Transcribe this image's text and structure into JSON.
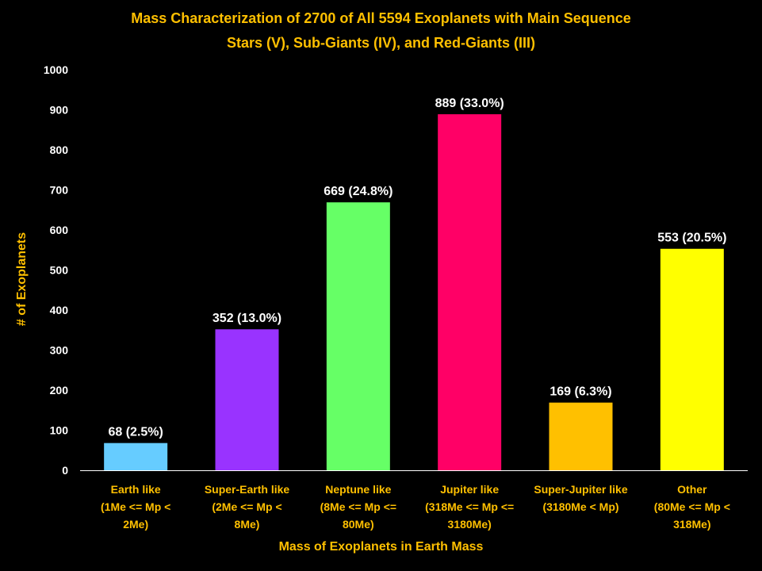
{
  "chart_data": {
    "type": "bar",
    "title": [
      "Mass Characterization of 2700 of All 5594 Exoplanets with Main Sequence",
      "Stars (V), Sub-Giants (IV), and Red-Giants (III)"
    ],
    "xlabel": "Mass of Exoplanets in Earth Mass",
    "ylabel": "# of Exoplanets",
    "ylim": [
      0,
      1000
    ],
    "yticks": [
      "0",
      "100",
      "200",
      "300",
      "400",
      "500",
      "600",
      "700",
      "800",
      "900",
      "1000"
    ],
    "categories": [
      [
        "Earth like",
        "(1Me <= Mp <",
        "2Me)"
      ],
      [
        "Super-Earth  like",
        "(2Me <= Mp <",
        "8Me)"
      ],
      [
        "Neptune like",
        "(8Me <= Mp <=",
        "80Me)"
      ],
      [
        "Jupiter like",
        "(318Me <= Mp <=",
        "3180Me)"
      ],
      [
        "Super-Jupiter like",
        "(3180Me < Mp)"
      ],
      [
        "Other",
        "(80Me <= Mp <",
        "318Me)"
      ]
    ],
    "values": [
      68,
      352,
      669,
      889,
      169,
      553
    ],
    "data_labels": [
      "68 (2.5%)",
      "352 (13.0%)",
      "669 (24.8%)",
      "889 (33.0%)",
      "169 (6.3%)",
      "553 (20.5%)"
    ],
    "colors": [
      "#66CCFF",
      "#9933FF",
      "#66FF66",
      "#FF0066",
      "#FFC000",
      "#FFFF00"
    ],
    "grid": false,
    "legend": "none"
  },
  "style": {
    "background": "#000000",
    "title_color": "#FFC000",
    "axis_label_color": "#FFC000",
    "tick_color": "#FFFFFF",
    "category_color": "#FFC000",
    "data_label_color": "#FFFFFF"
  }
}
